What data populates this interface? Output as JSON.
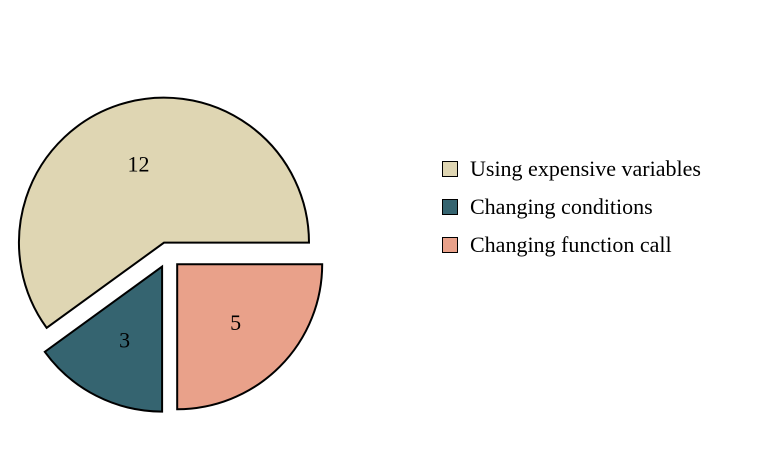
{
  "chart_data": {
    "type": "pie",
    "title": "",
    "exploded": true,
    "legend_position": "right",
    "categories": [
      "Using expensive variables",
      "Changing conditions",
      "Changing function call"
    ],
    "values": [
      12,
      3,
      5
    ],
    "colors": [
      "#dfd6b3",
      "#356470",
      "#e9a18a"
    ]
  }
}
